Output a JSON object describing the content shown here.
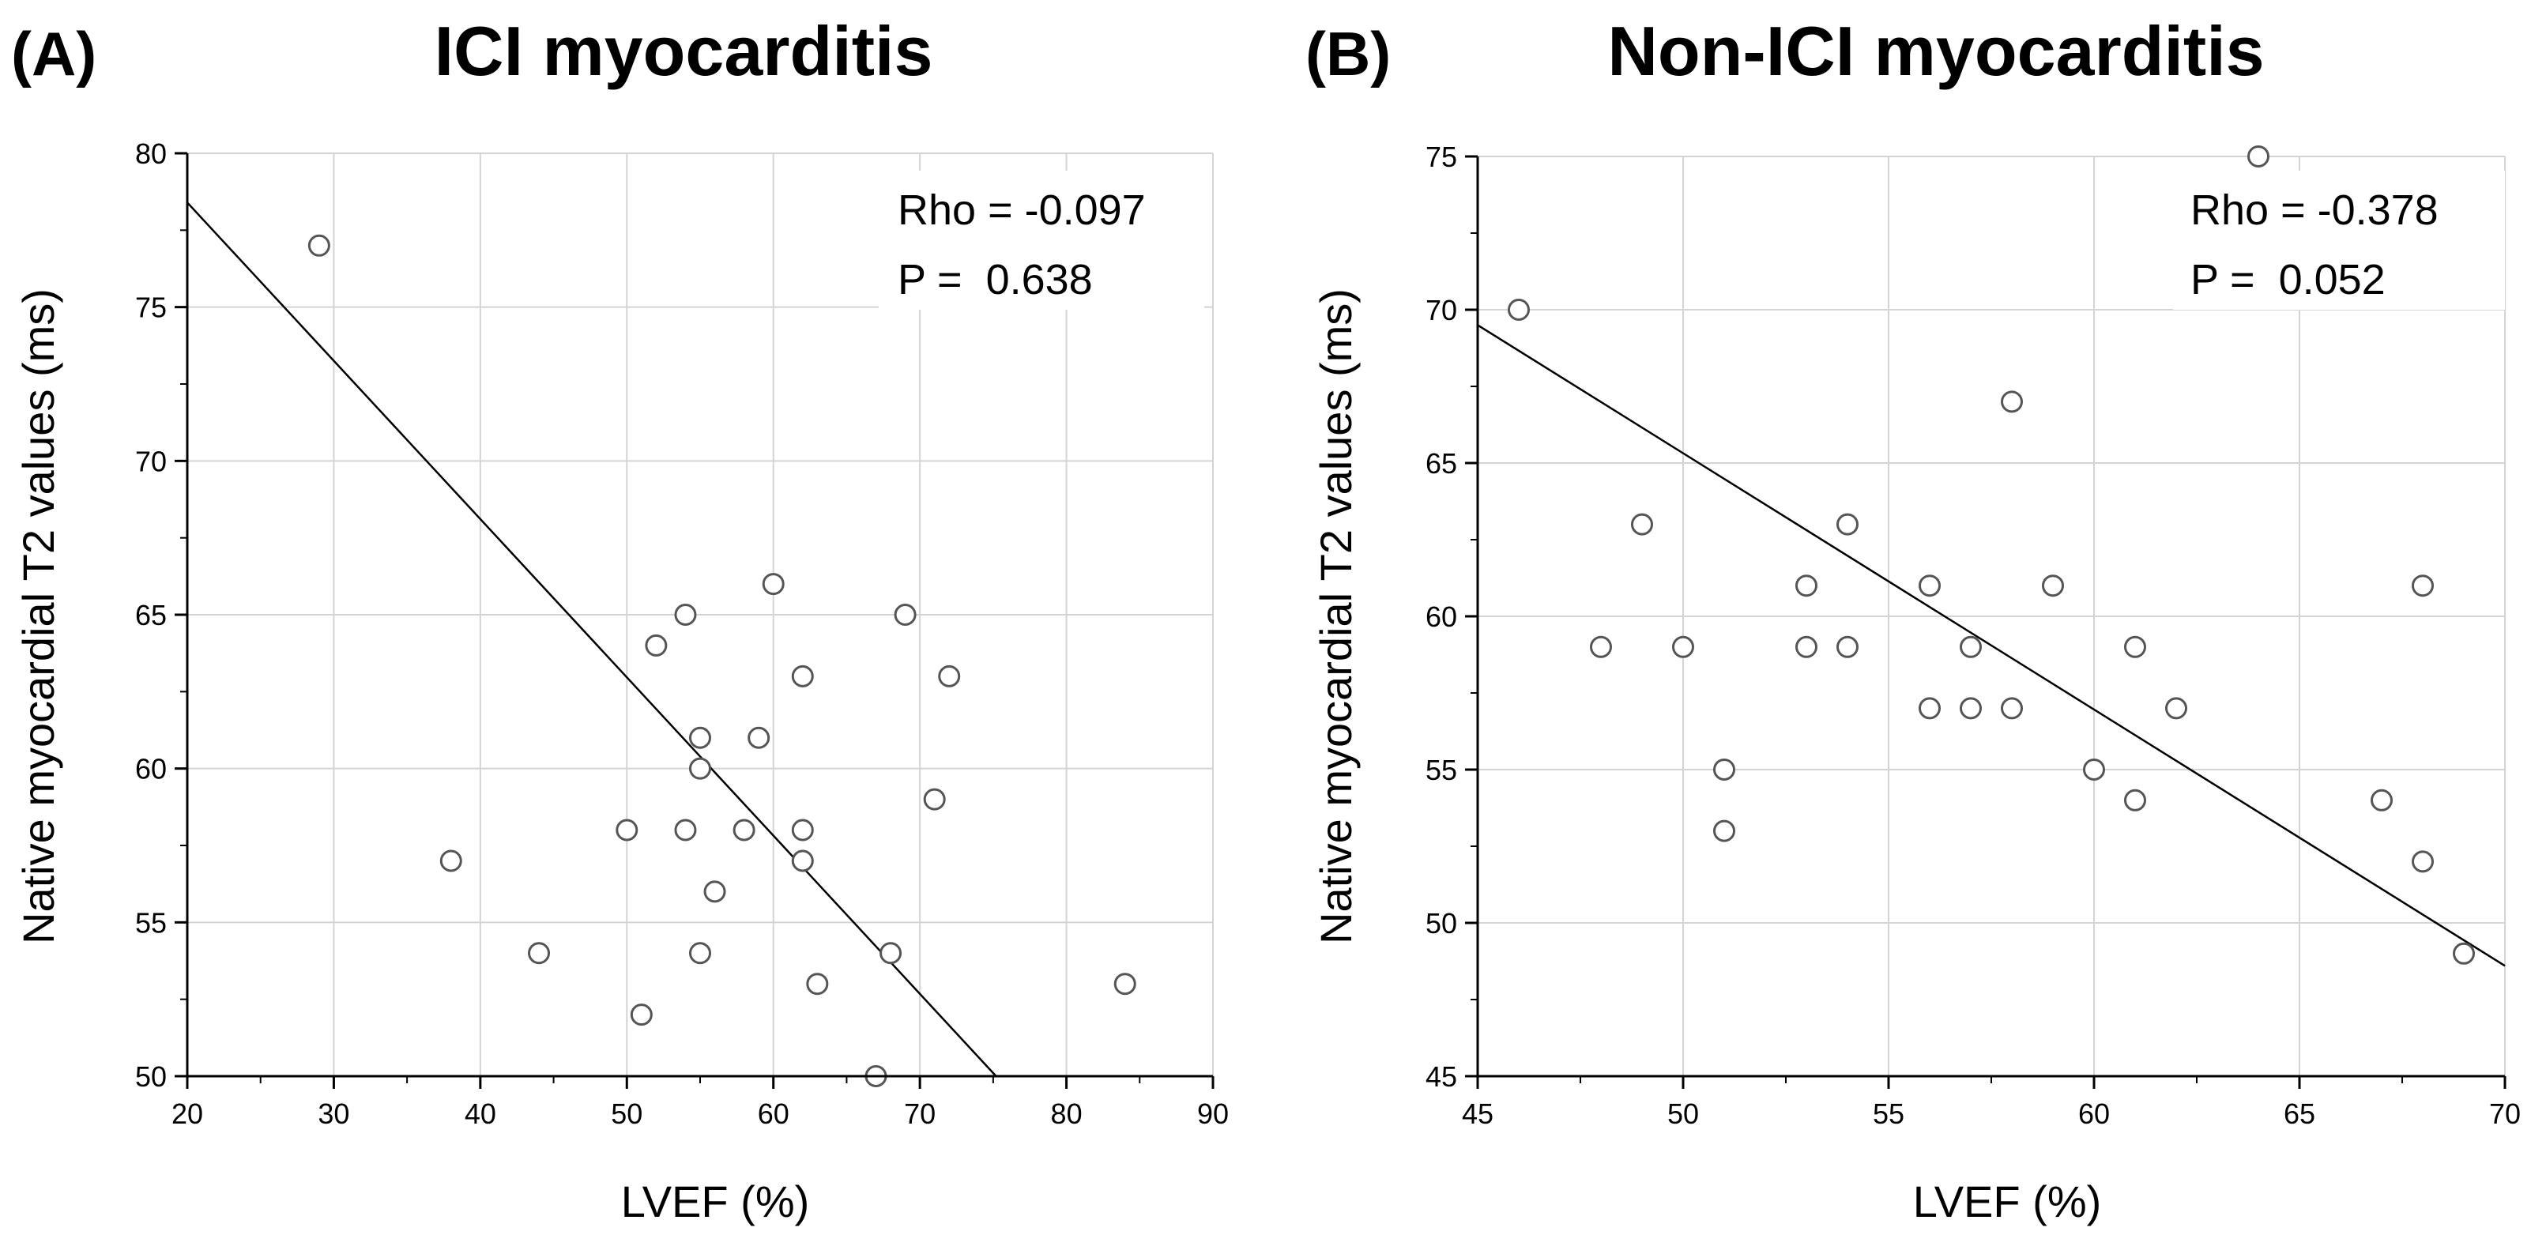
{
  "figure": {
    "panels": [
      {
        "letter": "(A)",
        "title": "ICI myocarditis"
      },
      {
        "letter": "(B)",
        "title": "Non-ICI myocarditis"
      }
    ]
  },
  "chart_data": [
    {
      "type": "scatter",
      "panel": "(A)",
      "title": "ICI myocarditis",
      "xlabel": "LVEF (%)",
      "ylabel": "Native myocardial T2 values (ms)",
      "xlim": [
        20,
        90
      ],
      "ylim": [
        50,
        80
      ],
      "xticks": [
        20,
        30,
        40,
        50,
        60,
        70,
        80,
        90
      ],
      "yticks": [
        50,
        55,
        60,
        65,
        70,
        75,
        80
      ],
      "grid": true,
      "legend": "none",
      "annotation": {
        "line1": "Rho = -0.097",
        "line2": "P =  0.638",
        "placement": "top-right"
      },
      "regression_line": {
        "x": [
          20,
          75.2
        ],
        "y": [
          78.4,
          50
        ]
      },
      "points": [
        {
          "x": 29,
          "y": 77
        },
        {
          "x": 38,
          "y": 57
        },
        {
          "x": 44,
          "y": 54
        },
        {
          "x": 50,
          "y": 58
        },
        {
          "x": 51,
          "y": 52
        },
        {
          "x": 52,
          "y": 64
        },
        {
          "x": 54,
          "y": 65
        },
        {
          "x": 54,
          "y": 58
        },
        {
          "x": 55,
          "y": 61
        },
        {
          "x": 55,
          "y": 60
        },
        {
          "x": 55,
          "y": 54
        },
        {
          "x": 56,
          "y": 56
        },
        {
          "x": 58,
          "y": 58
        },
        {
          "x": 59,
          "y": 61
        },
        {
          "x": 60,
          "y": 66
        },
        {
          "x": 62,
          "y": 63
        },
        {
          "x": 62,
          "y": 58
        },
        {
          "x": 62,
          "y": 57
        },
        {
          "x": 63,
          "y": 53
        },
        {
          "x": 67,
          "y": 50
        },
        {
          "x": 68,
          "y": 54
        },
        {
          "x": 69,
          "y": 65
        },
        {
          "x": 71,
          "y": 59
        },
        {
          "x": 72,
          "y": 63
        },
        {
          "x": 84,
          "y": 53
        }
      ]
    },
    {
      "type": "scatter",
      "panel": "(B)",
      "title": "Non-ICI myocarditis",
      "xlabel": "LVEF (%)",
      "ylabel": "Native myocardial T2 values (ms)",
      "xlim": [
        45,
        70
      ],
      "ylim": [
        45,
        75
      ],
      "xticks": [
        45,
        50,
        55,
        60,
        65,
        70
      ],
      "yticks": [
        45,
        50,
        55,
        60,
        65,
        70,
        75
      ],
      "grid": true,
      "legend": "none",
      "annotation": {
        "line1": "Rho = -0.378",
        "line2": "P =  0.052",
        "placement": "top-right"
      },
      "regression_line": {
        "x": [
          45,
          70
        ],
        "y": [
          69.5,
          48.6
        ]
      },
      "points": [
        {
          "x": 46,
          "y": 70
        },
        {
          "x": 48,
          "y": 59
        },
        {
          "x": 49,
          "y": 63
        },
        {
          "x": 50,
          "y": 59
        },
        {
          "x": 51,
          "y": 55
        },
        {
          "x": 51,
          "y": 53
        },
        {
          "x": 53,
          "y": 61
        },
        {
          "x": 53,
          "y": 59
        },
        {
          "x": 54,
          "y": 63
        },
        {
          "x": 54,
          "y": 59
        },
        {
          "x": 56,
          "y": 61
        },
        {
          "x": 56,
          "y": 57
        },
        {
          "x": 57,
          "y": 59
        },
        {
          "x": 57,
          "y": 57
        },
        {
          "x": 58,
          "y": 67
        },
        {
          "x": 58,
          "y": 57
        },
        {
          "x": 59,
          "y": 61
        },
        {
          "x": 60,
          "y": 55
        },
        {
          "x": 61,
          "y": 59
        },
        {
          "x": 61,
          "y": 54
        },
        {
          "x": 62,
          "y": 57
        },
        {
          "x": 64,
          "y": 75
        },
        {
          "x": 67,
          "y": 54
        },
        {
          "x": 68,
          "y": 61
        },
        {
          "x": 68,
          "y": 52
        },
        {
          "x": 69,
          "y": 49
        }
      ]
    }
  ]
}
